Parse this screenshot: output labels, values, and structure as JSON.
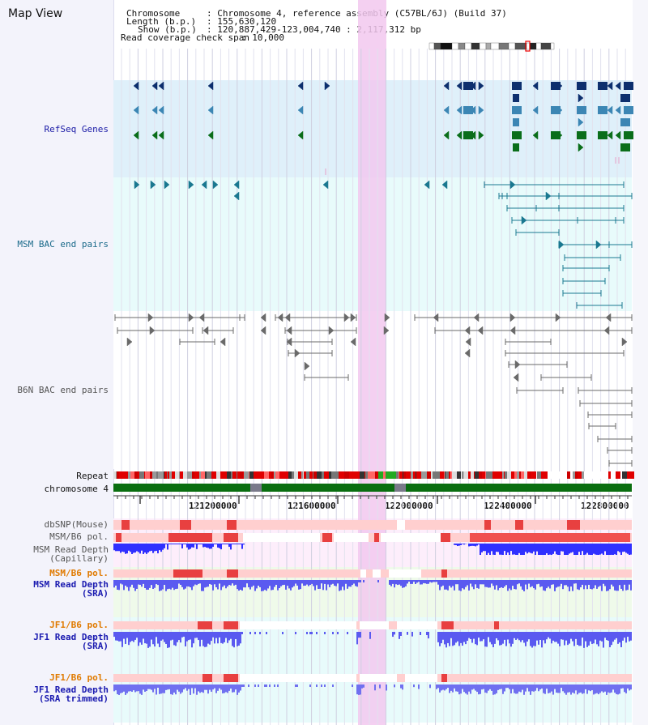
{
  "app": {
    "title": "Map View"
  },
  "header": {
    "chromosome_key": "Chromosome",
    "chromosome_val": ": Chromosome 4, reference assembly (C57BL/6J) (Build 37)",
    "length_key": "Length (b.p.)",
    "length_val": ": 155,630,120",
    "show_key": "Show (b.p.)",
    "show_val": ": 120,887,429-123,004,740 : 2,117,312 bp",
    "coverage_key": "Read coverage check span",
    "coverage_val": ": 10,000"
  },
  "tracks": {
    "refseq": {
      "label": "RefSeq Genes",
      "color": "#1a1aa6"
    },
    "msm_bac": {
      "label": "MSM BAC end pairs",
      "color": "#1a6a8a"
    },
    "b6n_bac": {
      "label": "B6N BAC end pairs",
      "color": "#555555"
    },
    "repeat": {
      "label": "Repeat",
      "color": "#111111"
    },
    "chromosome": {
      "label": "chromosome 4",
      "color": "#111111"
    },
    "dbsnp": {
      "label": "dbSNP(Mouse)",
      "color": "#555555"
    },
    "msm_b6_pol_cap": {
      "label": "MSM/B6 pol.",
      "color": "#555555"
    },
    "msm_depth_cap": {
      "label": "MSM Read Depth\n(Capillary)",
      "color": "#555555"
    },
    "msm_b6_pol_sra": {
      "label": "MSM/B6 pol.",
      "color": "#e07a00"
    },
    "msm_depth_sra": {
      "label": "MSM Read Depth\n(SRA)",
      "color": "#1a1ab0"
    },
    "jf1_b6_pol_sra": {
      "label": "JF1/B6 pol.",
      "color": "#e07a00"
    },
    "jf1_depth_sra": {
      "label": "JF1 Read Depth\n(SRA)",
      "color": "#1a1ab0"
    },
    "jf1_b6_pol_trim": {
      "label": "JF1/B6 pol.",
      "color": "#e07a00"
    },
    "jf1_depth_trim": {
      "label": "JF1 Read Depth\n(SRA trimmed)",
      "color": "#1a1ab0"
    }
  },
  "axis": {
    "ticks": [
      "121200000",
      "121600000",
      "122000000",
      "122400000",
      "122800000"
    ]
  },
  "highlight": {
    "color": "#f2c8ee"
  },
  "colors": {
    "refseq_bg": "#dff0fa",
    "bac_bg": "#e8fbfb",
    "gene_dark": "#0d2f6e",
    "gene_mid": "#3c86b4",
    "gene_green": "#0a6e1a",
    "msm_bac": "#1a7890",
    "b6n_bac": "#6a6a6a",
    "depth_blue": "#5a5af0",
    "snp_red": "#e84040",
    "chrom_green": "#0a6e10"
  }
}
